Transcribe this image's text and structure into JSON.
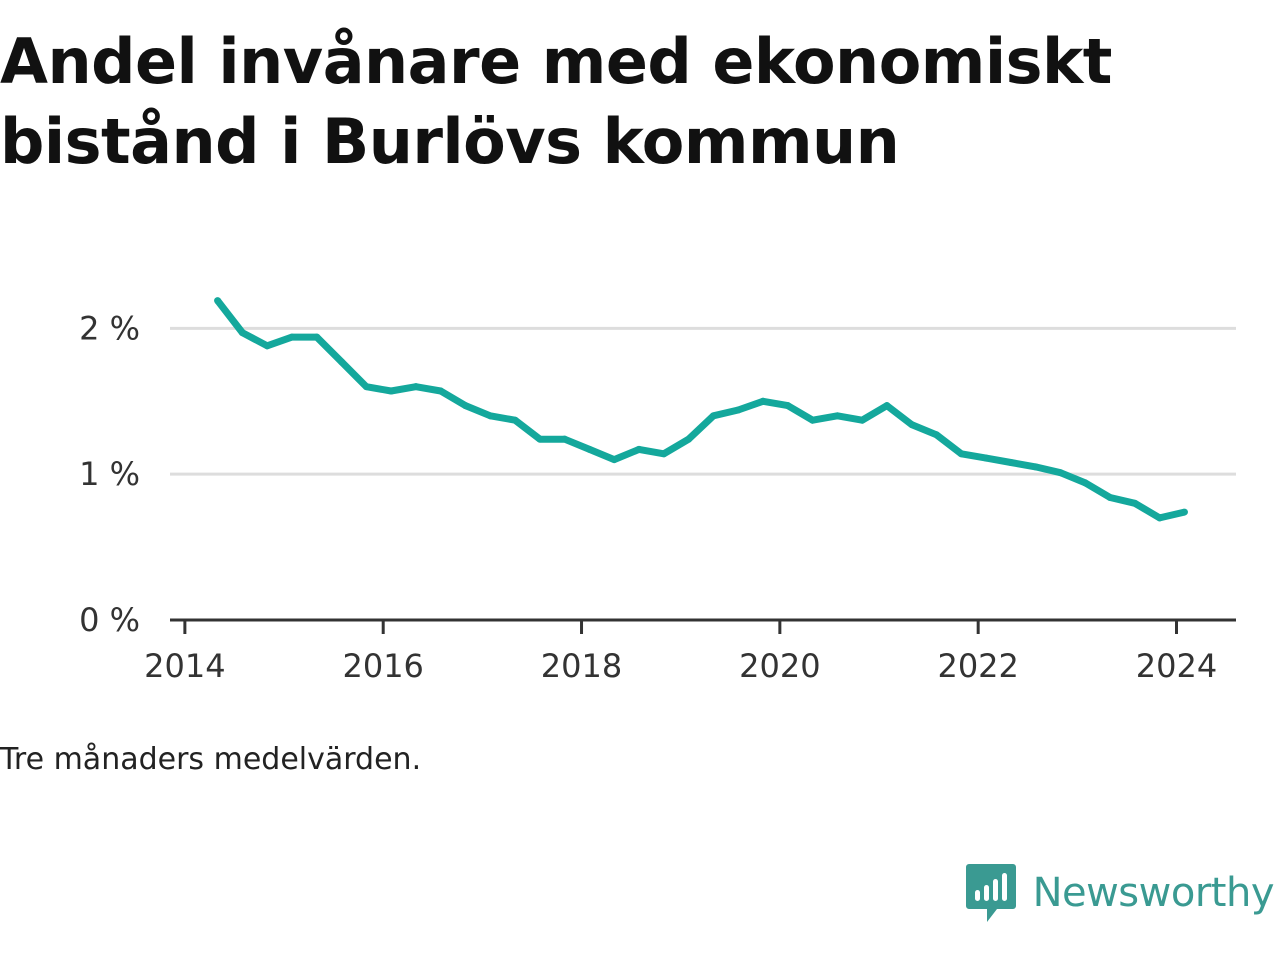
{
  "title": "Andel invånare med ekonomiskt bistånd i Burlövs kommun",
  "note": "Tre månaders medelvärden.",
  "brand": {
    "name": "Newsworthy",
    "icon": "bar-chart-speech-bubble-icon"
  },
  "colors": {
    "line": "#14a89c",
    "grid": "#dddddd",
    "axis": "#333333",
    "brand": "#3a9a92"
  },
  "chart_data": {
    "type": "line",
    "title": "Andel invånare med ekonomiskt bistånd i Burlövs kommun",
    "xlabel": "",
    "ylabel": "",
    "xlim": [
      2013.85,
      2024.6
    ],
    "ylim": [
      0,
      2.4
    ],
    "yticks": [
      0,
      1,
      2
    ],
    "ytick_labels": [
      "0 %",
      "1 %",
      "2 %"
    ],
    "xticks": [
      2014,
      2016,
      2018,
      2020,
      2022,
      2024
    ],
    "xtick_labels": [
      "2014",
      "2016",
      "2018",
      "2020",
      "2022",
      "2024"
    ],
    "grid": true,
    "legend": "none",
    "series": [
      {
        "x": [
          2014.33,
          2014.58,
          2014.83,
          2015.08,
          2015.33,
          2015.58,
          2015.83,
          2016.08,
          2016.33,
          2016.58,
          2016.83,
          2017.08,
          2017.33,
          2017.58,
          2017.83,
          2018.08,
          2018.33,
          2018.58,
          2018.83,
          2019.08,
          2019.33,
          2019.58,
          2019.83,
          2020.08,
          2020.33,
          2020.58,
          2020.83,
          2021.08,
          2021.33,
          2021.58,
          2021.83,
          2022.08,
          2022.33,
          2022.58,
          2022.83,
          2023.08,
          2023.33,
          2023.58,
          2023.83,
          2024.08
        ],
        "values": [
          2.19,
          1.97,
          1.88,
          1.94,
          1.94,
          1.77,
          1.6,
          1.57,
          1.6,
          1.57,
          1.47,
          1.4,
          1.37,
          1.24,
          1.24,
          1.17,
          1.1,
          1.17,
          1.14,
          1.24,
          1.4,
          1.44,
          1.5,
          1.47,
          1.37,
          1.4,
          1.37,
          1.47,
          1.34,
          1.27,
          1.14,
          1.11,
          1.08,
          1.05,
          1.01,
          0.94,
          0.84,
          0.8,
          0.7,
          0.74
        ]
      }
    ]
  }
}
